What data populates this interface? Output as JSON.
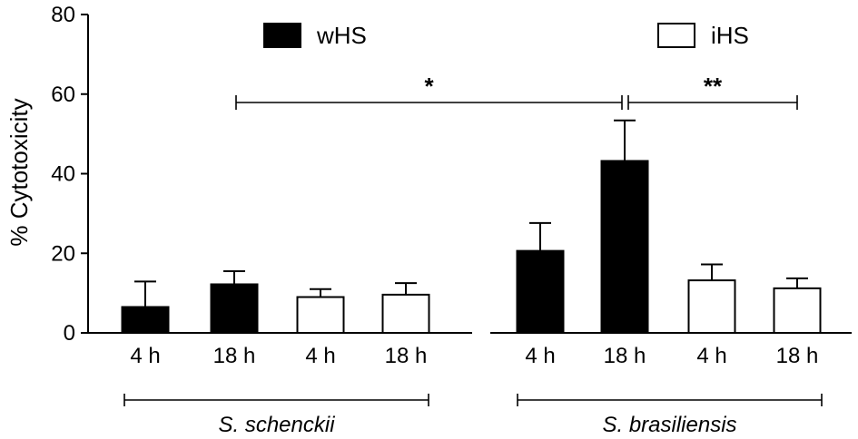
{
  "chart_data": {
    "type": "bar",
    "ylabel": "% Cytotoxicity",
    "ylim": [
      0,
      80
    ],
    "yticks": [
      "0",
      "20",
      "40",
      "60",
      "80"
    ],
    "categories": [
      "4 h",
      "18 h",
      "4 h",
      "18 h",
      "4 h",
      "18 h",
      "4 h",
      "18 h"
    ],
    "values": [
      6.5,
      12.2,
      9.0,
      9.6,
      20.6,
      43.2,
      13.2,
      11.2
    ],
    "errors": [
      6.4,
      3.3,
      2.0,
      2.9,
      7.0,
      10.2,
      4.0,
      2.5
    ],
    "fill": [
      "wHS",
      "wHS",
      "iHS",
      "iHS",
      "wHS",
      "wHS",
      "iHS",
      "iHS"
    ],
    "legend": [
      {
        "name": "wHS",
        "color": "#000000"
      },
      {
        "name": "iHS",
        "color": "#ffffff"
      }
    ],
    "groups": [
      {
        "label": "S. schenckii",
        "from": 0,
        "to": 3
      },
      {
        "label": "S.  brasiliensis",
        "from": 4,
        "to": 7
      }
    ],
    "significance": [
      {
        "label": "*",
        "from": 1,
        "to": 5
      },
      {
        "label": "**",
        "from": 5,
        "to": 7
      }
    ],
    "legend_placement": "top",
    "grid": false
  }
}
